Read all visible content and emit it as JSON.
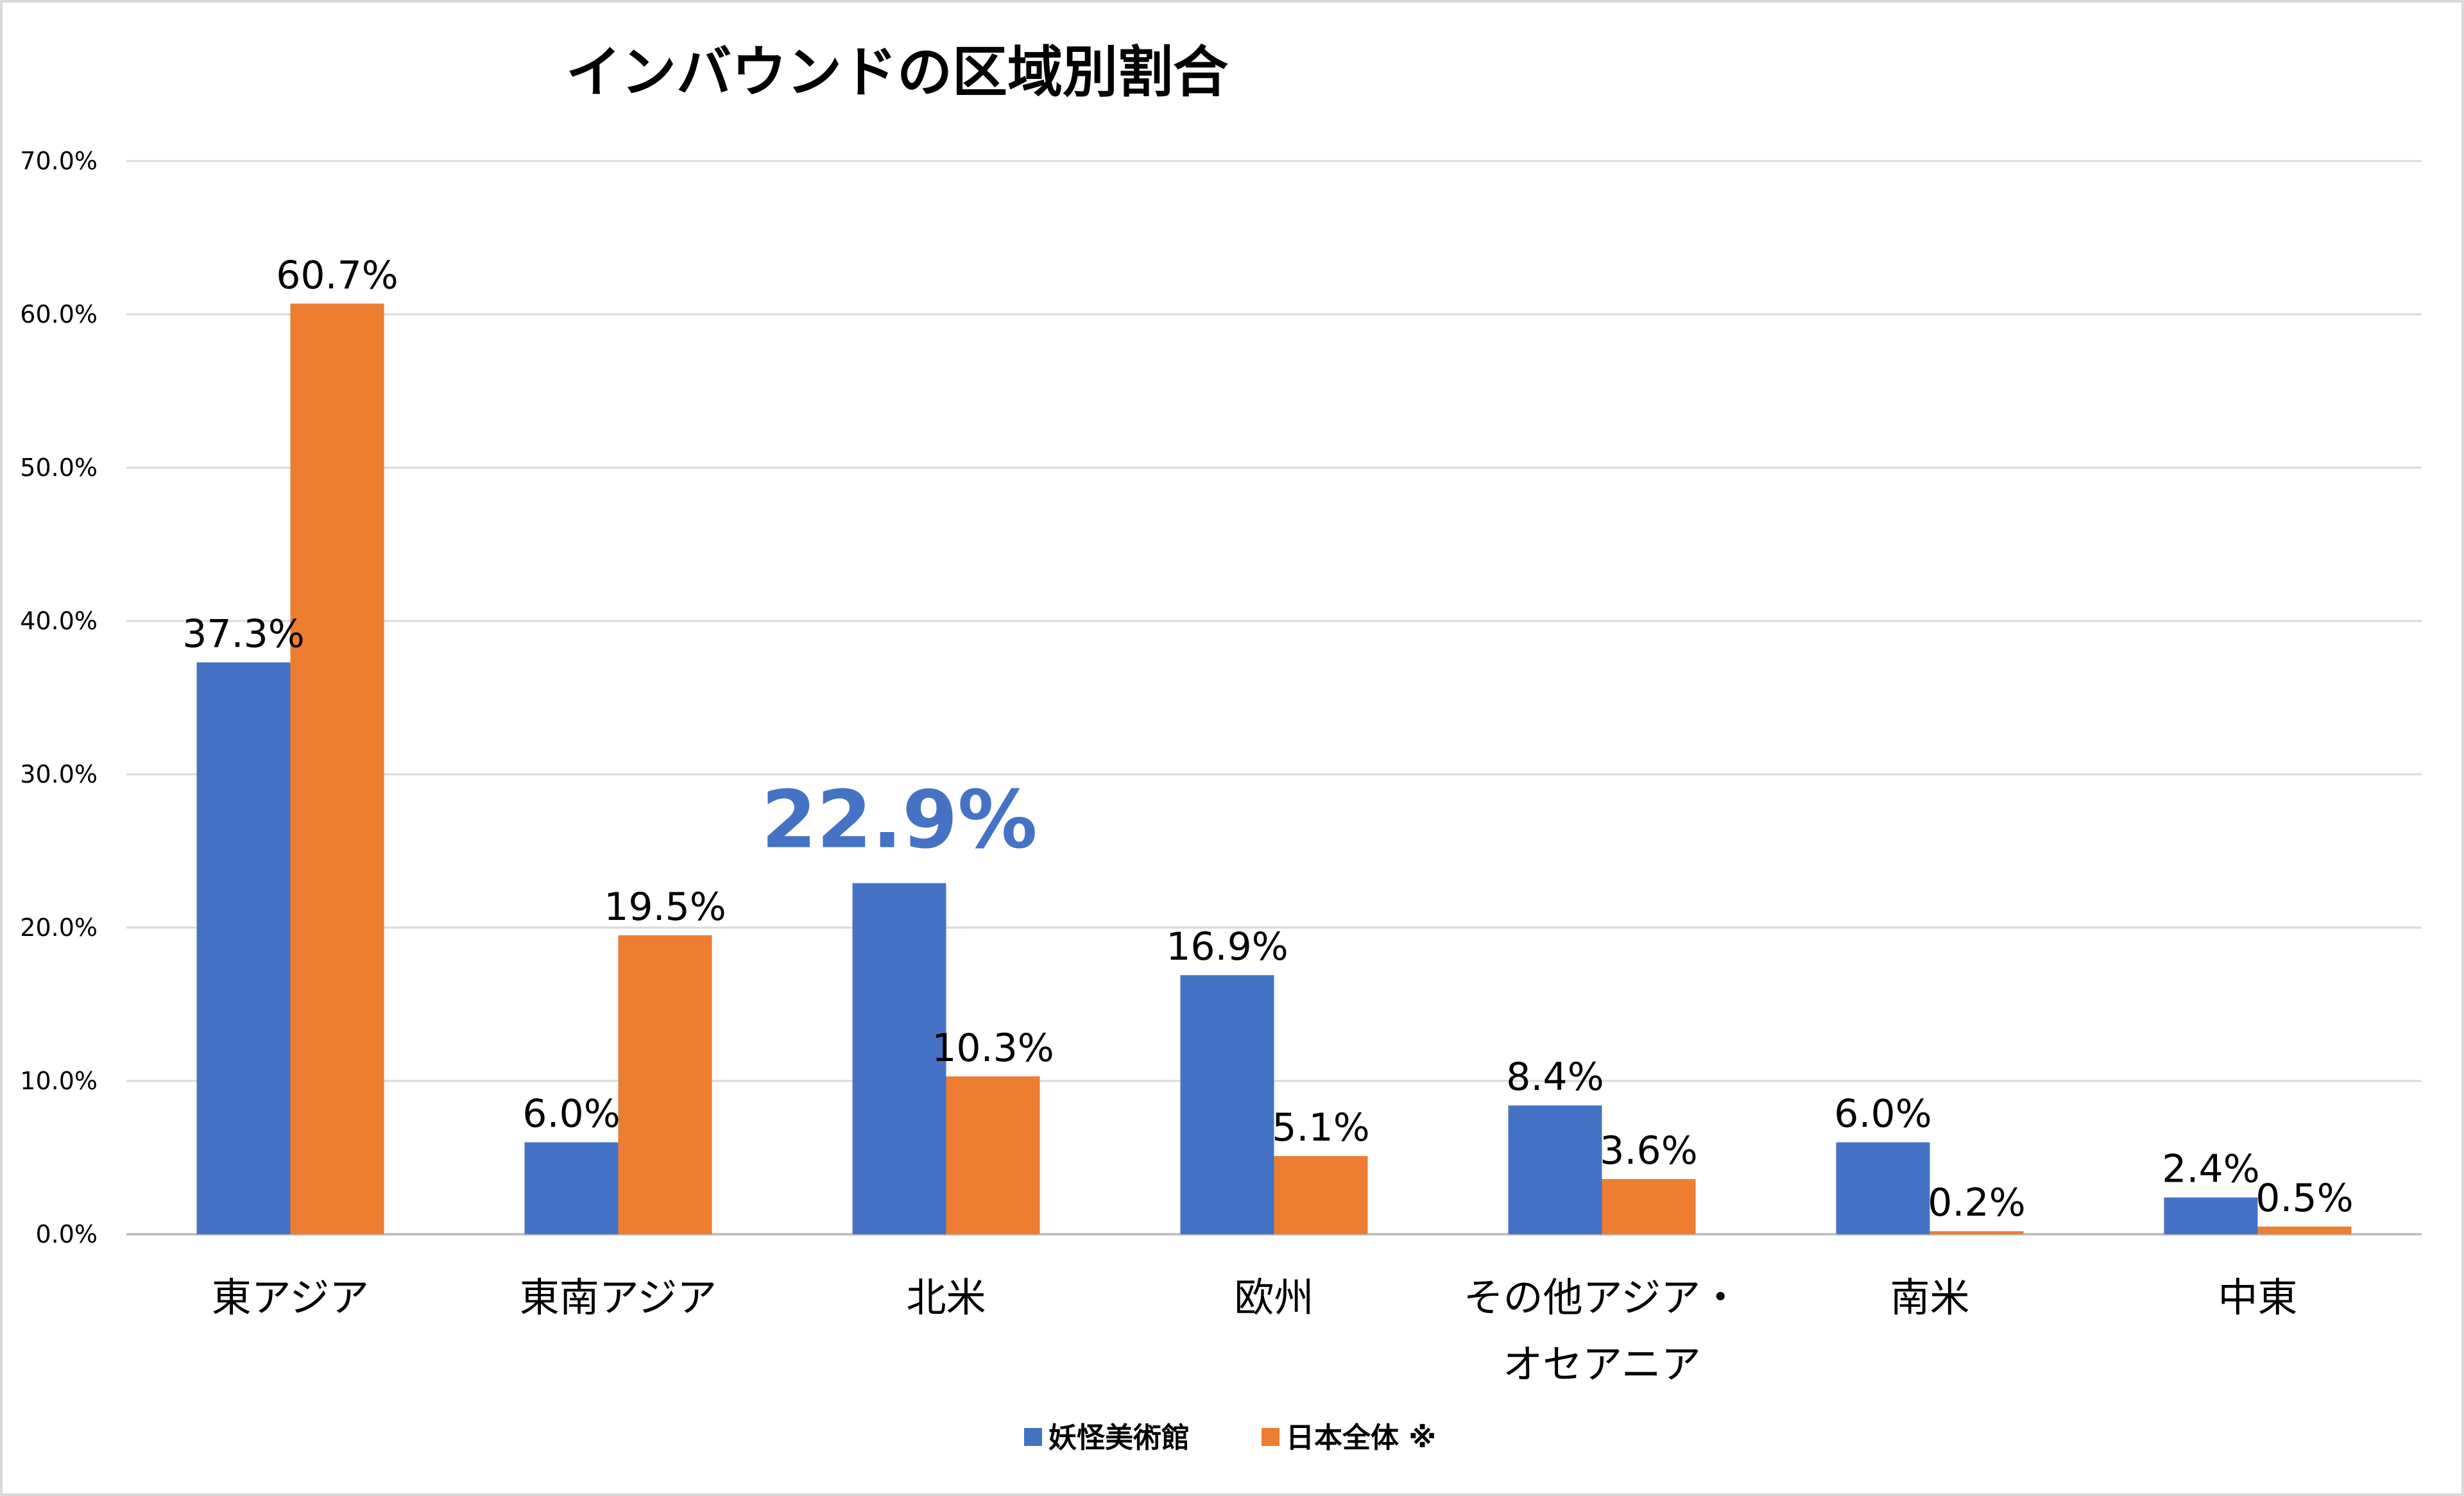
{
  "chart_data": {
    "type": "bar",
    "title": "インバウンドの区域別割合",
    "categories": [
      [
        "東アジア"
      ],
      [
        "東南アジア"
      ],
      [
        "北米"
      ],
      [
        "欧州"
      ],
      [
        "その他アジア・",
        "オセアニア"
      ],
      [
        "南米"
      ],
      [
        "中東"
      ]
    ],
    "series": [
      {
        "name": "妖怪美術館",
        "color": "#4472c4",
        "values": [
          37.3,
          6.0,
          22.9,
          16.9,
          8.4,
          6.0,
          2.4
        ],
        "labels": [
          "37.3%",
          "6.0%",
          "22.9%",
          "16.9%",
          "8.4%",
          "6.0%",
          "2.4%"
        ]
      },
      {
        "name": "日本全体 ※",
        "color": "#ed7d31",
        "values": [
          60.7,
          19.5,
          10.3,
          5.1,
          3.6,
          0.2,
          0.5
        ],
        "labels": [
          "60.7%",
          "19.5%",
          "10.3%",
          "5.1%",
          "3.6%",
          "0.2%",
          "0.5%"
        ]
      }
    ],
    "highlight": {
      "series": 0,
      "category": 2
    },
    "y_ticks": [
      "0.0%",
      "10.0%",
      "20.0%",
      "30.0%",
      "40.0%",
      "50.0%",
      "60.0%",
      "70.0%"
    ],
    "ylim": [
      0,
      70
    ],
    "xlabel": "",
    "ylabel": "",
    "grid": true,
    "legend_position": "bottom"
  }
}
